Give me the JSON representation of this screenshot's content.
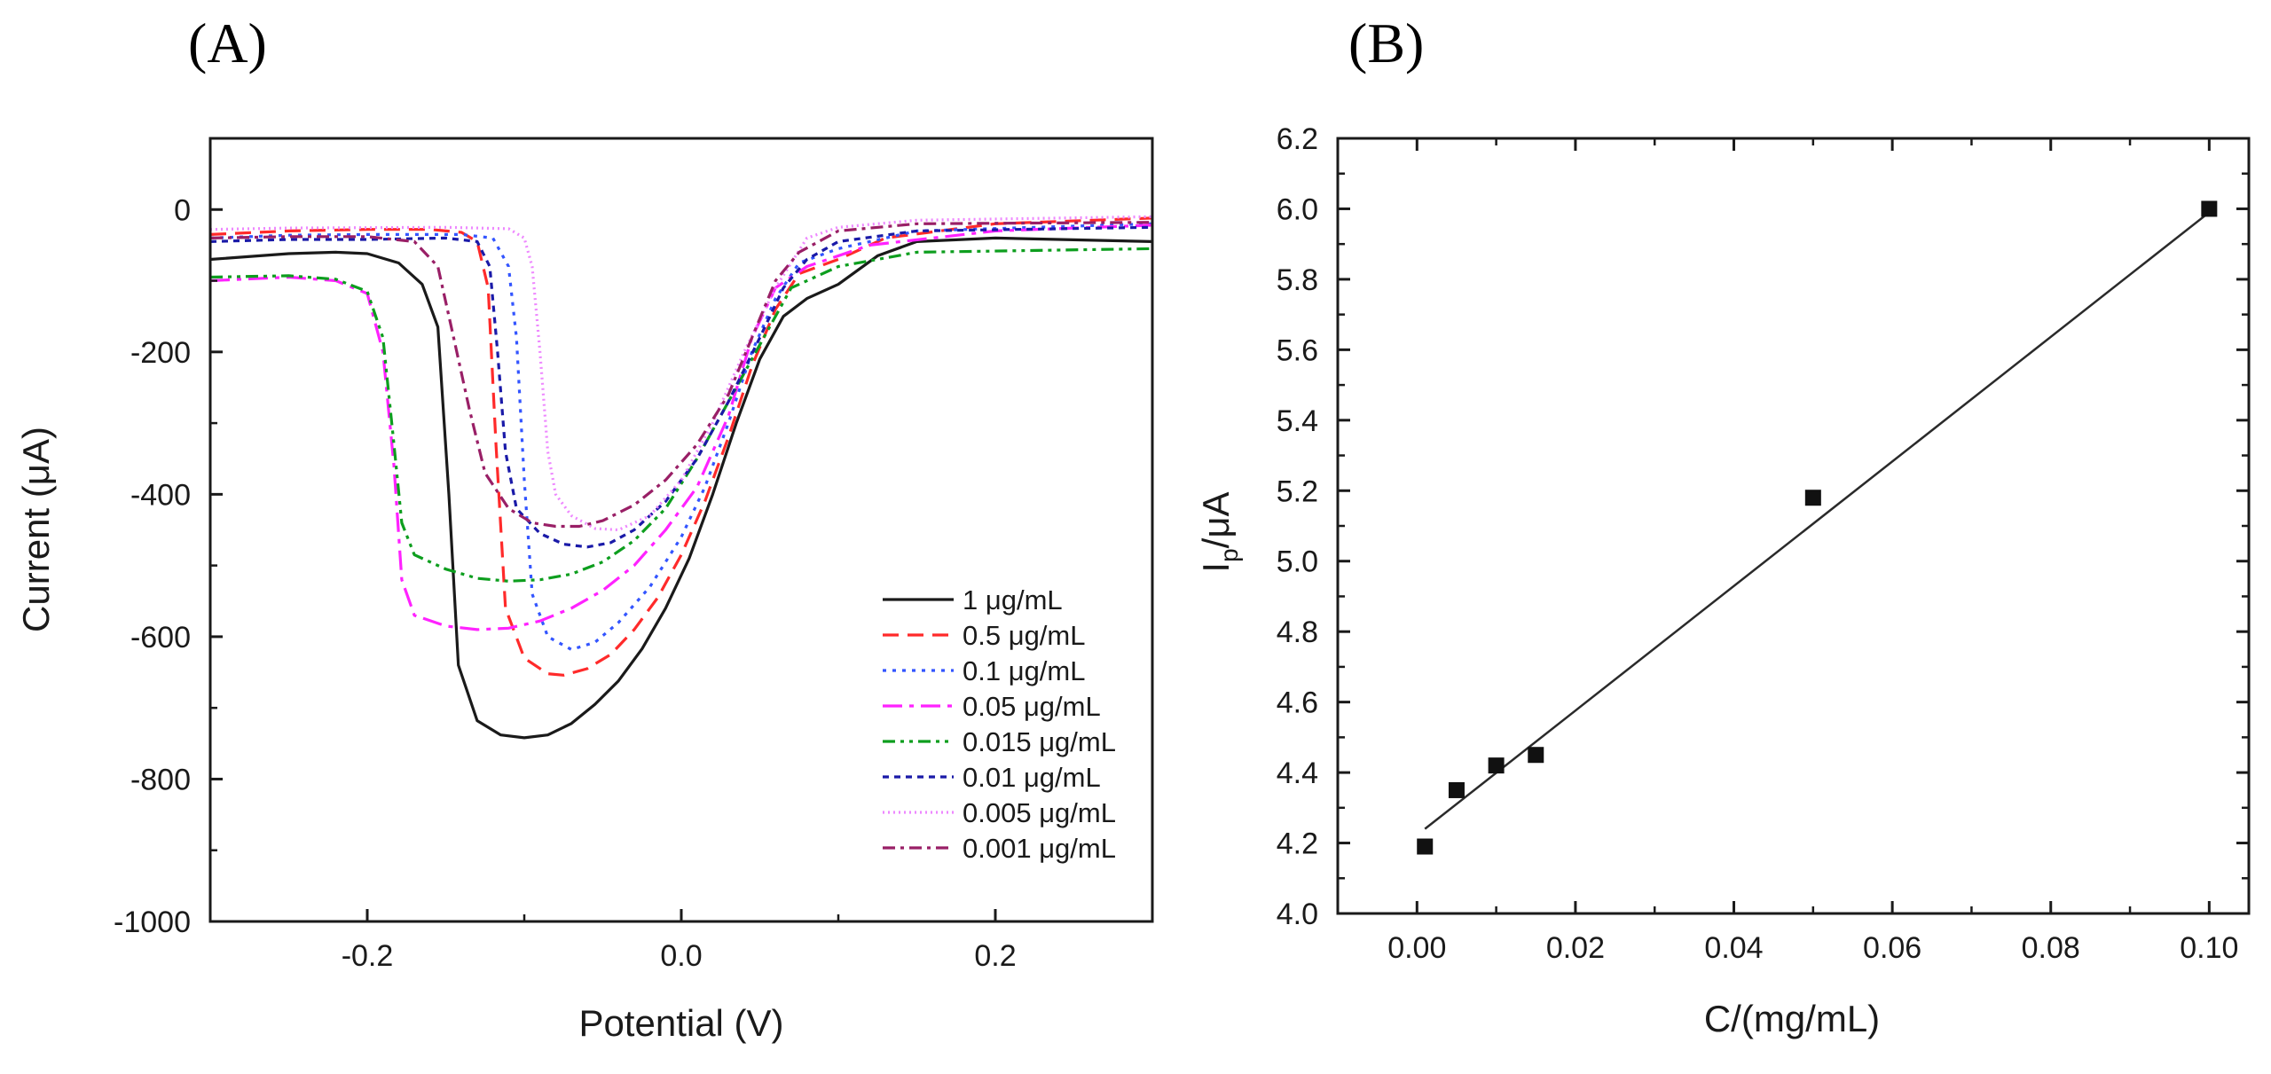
{
  "chart_data": [
    {
      "panel_label": "(A)",
      "type": "line",
      "xlabel": "Potential (V)",
      "ylabel": "Current (μA)",
      "xlim": [
        -0.3,
        0.3
      ],
      "ylim": [
        -1000,
        100
      ],
      "xticks": [
        -0.2,
        0.0,
        0.2
      ],
      "xtick_labels": [
        "-0.2",
        "0.0",
        "0.2"
      ],
      "yticks": [
        0,
        -200,
        -400,
        -600,
        -800,
        -1000
      ],
      "ytick_labels": [
        "0",
        "-200",
        "-400",
        "-600",
        "-800",
        "-1000"
      ],
      "grid": false,
      "legend_position": "bottom-right",
      "series": [
        {
          "name": "1 μg/mL",
          "color": "#1a1a1a",
          "dash": "solid",
          "points": [
            [
              -0.3,
              -70
            ],
            [
              -0.25,
              -62
            ],
            [
              -0.22,
              -60
            ],
            [
              -0.2,
              -62
            ],
            [
              -0.18,
              -75
            ],
            [
              -0.165,
              -105
            ],
            [
              -0.155,
              -165
            ],
            [
              -0.148,
              -400
            ],
            [
              -0.142,
              -640
            ],
            [
              -0.13,
              -718
            ],
            [
              -0.115,
              -738
            ],
            [
              -0.1,
              -742
            ],
            [
              -0.085,
              -738
            ],
            [
              -0.07,
              -722
            ],
            [
              -0.055,
              -695
            ],
            [
              -0.04,
              -662
            ],
            [
              -0.025,
              -617
            ],
            [
              -0.01,
              -560
            ],
            [
              0.005,
              -490
            ],
            [
              0.02,
              -400
            ],
            [
              0.035,
              -300
            ],
            [
              0.05,
              -210
            ],
            [
              0.065,
              -150
            ],
            [
              0.08,
              -125
            ],
            [
              0.1,
              -105
            ],
            [
              0.125,
              -65
            ],
            [
              0.15,
              -45
            ],
            [
              0.2,
              -40
            ],
            [
              0.3,
              -45
            ]
          ]
        },
        {
          "name": "0.5 μg/mL",
          "color": "#ff2a2a",
          "dash": "18,10",
          "points": [
            [
              -0.3,
              -35
            ],
            [
              -0.25,
              -30
            ],
            [
              -0.2,
              -28
            ],
            [
              -0.16,
              -28
            ],
            [
              -0.14,
              -32
            ],
            [
              -0.13,
              -45
            ],
            [
              -0.123,
              -110
            ],
            [
              -0.118,
              -330
            ],
            [
              -0.112,
              -560
            ],
            [
              -0.1,
              -630
            ],
            [
              -0.085,
              -652
            ],
            [
              -0.075,
              -654
            ],
            [
              -0.06,
              -645
            ],
            [
              -0.045,
              -625
            ],
            [
              -0.03,
              -590
            ],
            [
              -0.015,
              -545
            ],
            [
              0.0,
              -485
            ],
            [
              0.015,
              -410
            ],
            [
              0.03,
              -320
            ],
            [
              0.045,
              -220
            ],
            [
              0.06,
              -140
            ],
            [
              0.075,
              -90
            ],
            [
              0.1,
              -70
            ],
            [
              0.13,
              -40
            ],
            [
              0.2,
              -20
            ],
            [
              0.3,
              -12
            ]
          ]
        },
        {
          "name": "0.1 μg/mL",
          "color": "#3355ff",
          "dash": "4,7",
          "points": [
            [
              -0.3,
              -40
            ],
            [
              -0.25,
              -36
            ],
            [
              -0.2,
              -35
            ],
            [
              -0.14,
              -35
            ],
            [
              -0.12,
              -40
            ],
            [
              -0.11,
              -80
            ],
            [
              -0.105,
              -180
            ],
            [
              -0.1,
              -380
            ],
            [
              -0.095,
              -540
            ],
            [
              -0.085,
              -600
            ],
            [
              -0.07,
              -618
            ],
            [
              -0.055,
              -608
            ],
            [
              -0.04,
              -580
            ],
            [
              -0.02,
              -530
            ],
            [
              0.0,
              -460
            ],
            [
              0.015,
              -390
            ],
            [
              0.03,
              -300
            ],
            [
              0.045,
              -200
            ],
            [
              0.06,
              -125
            ],
            [
              0.075,
              -75
            ],
            [
              0.1,
              -55
            ],
            [
              0.15,
              -30
            ],
            [
              0.3,
              -20
            ]
          ]
        },
        {
          "name": "0.05 μg/mL",
          "color": "#ff22ff",
          "dash": "22,8,5,8",
          "points": [
            [
              -0.3,
              -100
            ],
            [
              -0.25,
              -95
            ],
            [
              -0.22,
              -100
            ],
            [
              -0.2,
              -118
            ],
            [
              -0.19,
              -200
            ],
            [
              -0.183,
              -360
            ],
            [
              -0.178,
              -520
            ],
            [
              -0.17,
              -570
            ],
            [
              -0.15,
              -585
            ],
            [
              -0.13,
              -590
            ],
            [
              -0.11,
              -588
            ],
            [
              -0.09,
              -578
            ],
            [
              -0.07,
              -560
            ],
            [
              -0.05,
              -535
            ],
            [
              -0.03,
              -500
            ],
            [
              -0.01,
              -450
            ],
            [
              0.01,
              -390
            ],
            [
              0.03,
              -290
            ],
            [
              0.045,
              -180
            ],
            [
              0.06,
              -110
            ],
            [
              0.08,
              -80
            ],
            [
              0.12,
              -50
            ],
            [
              0.2,
              -30
            ],
            [
              0.3,
              -22
            ]
          ]
        },
        {
          "name": "0.015 μg/mL",
          "color": "#0d9e1e",
          "dash": "14,6,4,6,4,6",
          "points": [
            [
              -0.3,
              -95
            ],
            [
              -0.25,
              -93
            ],
            [
              -0.22,
              -98
            ],
            [
              -0.2,
              -115
            ],
            [
              -0.19,
              -180
            ],
            [
              -0.183,
              -330
            ],
            [
              -0.178,
              -440
            ],
            [
              -0.17,
              -485
            ],
            [
              -0.15,
              -505
            ],
            [
              -0.13,
              -518
            ],
            [
              -0.11,
              -522
            ],
            [
              -0.09,
              -520
            ],
            [
              -0.07,
              -512
            ],
            [
              -0.05,
              -495
            ],
            [
              -0.03,
              -465
            ],
            [
              -0.01,
              -420
            ],
            [
              0.01,
              -350
            ],
            [
              0.03,
              -270
            ],
            [
              0.05,
              -190
            ],
            [
              0.07,
              -110
            ],
            [
              0.1,
              -80
            ],
            [
              0.15,
              -60
            ],
            [
              0.3,
              -55
            ]
          ]
        },
        {
          "name": "0.01 μg/mL",
          "color": "#1a1aa8",
          "dash": "7,6",
          "points": [
            [
              -0.3,
              -45
            ],
            [
              -0.25,
              -42
            ],
            [
              -0.2,
              -42
            ],
            [
              -0.15,
              -40
            ],
            [
              -0.13,
              -45
            ],
            [
              -0.122,
              -80
            ],
            [
              -0.117,
              -200
            ],
            [
              -0.112,
              -340
            ],
            [
              -0.105,
              -420
            ],
            [
              -0.09,
              -455
            ],
            [
              -0.075,
              -470
            ],
            [
              -0.06,
              -474
            ],
            [
              -0.045,
              -468
            ],
            [
              -0.03,
              -450
            ],
            [
              -0.01,
              -410
            ],
            [
              0.01,
              -350
            ],
            [
              0.03,
              -270
            ],
            [
              0.05,
              -180
            ],
            [
              0.065,
              -110
            ],
            [
              0.08,
              -70
            ],
            [
              0.1,
              -45
            ],
            [
              0.15,
              -30
            ],
            [
              0.3,
              -25
            ]
          ]
        },
        {
          "name": "0.005 μg/mL",
          "color": "#ee88ff",
          "dash": "2,4",
          "points": [
            [
              -0.3,
              -28
            ],
            [
              -0.25,
              -26
            ],
            [
              -0.15,
              -25
            ],
            [
              -0.11,
              -27
            ],
            [
              -0.1,
              -40
            ],
            [
              -0.095,
              -80
            ],
            [
              -0.09,
              -200
            ],
            [
              -0.085,
              -340
            ],
            [
              -0.08,
              -400
            ],
            [
              -0.07,
              -430
            ],
            [
              -0.055,
              -448
            ],
            [
              -0.04,
              -450
            ],
            [
              -0.02,
              -430
            ],
            [
              0.0,
              -380
            ],
            [
              0.02,
              -300
            ],
            [
              0.04,
              -200
            ],
            [
              0.06,
              -110
            ],
            [
              0.08,
              -40
            ],
            [
              0.1,
              -25
            ],
            [
              0.15,
              -15
            ],
            [
              0.3,
              -10
            ]
          ]
        },
        {
          "name": "0.001 μg/mL",
          "color": "#991f66",
          "dash": "14,6,4,6",
          "points": [
            [
              -0.3,
              -40
            ],
            [
              -0.25,
              -38
            ],
            [
              -0.2,
              -38
            ],
            [
              -0.17,
              -45
            ],
            [
              -0.155,
              -80
            ],
            [
              -0.145,
              -180
            ],
            [
              -0.135,
              -280
            ],
            [
              -0.125,
              -370
            ],
            [
              -0.11,
              -420
            ],
            [
              -0.095,
              -440
            ],
            [
              -0.08,
              -445
            ],
            [
              -0.065,
              -445
            ],
            [
              -0.05,
              -437
            ],
            [
              -0.03,
              -415
            ],
            [
              -0.01,
              -380
            ],
            [
              0.01,
              -330
            ],
            [
              0.03,
              -260
            ],
            [
              0.045,
              -180
            ],
            [
              0.06,
              -100
            ],
            [
              0.075,
              -60
            ],
            [
              0.1,
              -30
            ],
            [
              0.15,
              -20
            ],
            [
              0.3,
              -18
            ]
          ]
        }
      ]
    },
    {
      "panel_label": "(B)",
      "type": "scatter",
      "xlabel": "C/(mg/mL)",
      "ylabel": "I",
      "ylabel_sub": "p",
      "ylabel_tail": "/μA",
      "xlim": [
        -0.01,
        0.105
      ],
      "ylim": [
        4.0,
        6.2
      ],
      "xticks": [
        0.0,
        0.02,
        0.04,
        0.06,
        0.08,
        0.1
      ],
      "xtick_labels": [
        "0.00",
        "0.02",
        "0.04",
        "0.06",
        "0.08",
        "0.10"
      ],
      "yticks": [
        4.0,
        4.2,
        4.4,
        4.6,
        4.8,
        5.0,
        5.2,
        5.4,
        5.6,
        5.8,
        6.0,
        6.2
      ],
      "ytick_labels": [
        "4.0",
        "4.2",
        "4.4",
        "4.6",
        "4.8",
        "5.0",
        "5.2",
        "5.4",
        "5.6",
        "5.8",
        "6.0",
        "6.2"
      ],
      "grid": false,
      "x": [
        0.001,
        0.005,
        0.01,
        0.015,
        0.05,
        0.1
      ],
      "y": [
        4.19,
        4.35,
        4.42,
        4.45,
        5.18,
        6.0
      ],
      "fit_line": {
        "x": [
          0.001,
          0.1
        ],
        "y": [
          4.24,
          5.99
        ]
      }
    }
  ]
}
